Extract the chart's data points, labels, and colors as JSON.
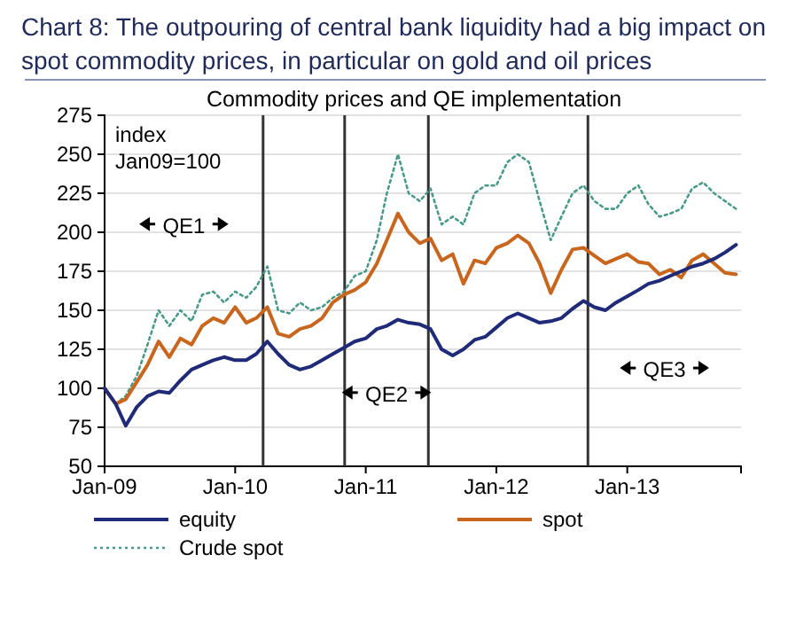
{
  "chart_data": {
    "type": "line",
    "title": "Chart 8: The outpouring of central bank liquidity had a big impact on\nspot commodity prices, in particular on gold and oil prices",
    "subtitle": "Commodity prices and QE implementation",
    "x": [
      "2009-01",
      "2009-02",
      "2009-03",
      "2009-04",
      "2009-05",
      "2009-06",
      "2009-07",
      "2009-08",
      "2009-09",
      "2009-10",
      "2009-11",
      "2009-12",
      "2010-01",
      "2010-02",
      "2010-03",
      "2010-04",
      "2010-05",
      "2010-06",
      "2010-07",
      "2010-08",
      "2010-09",
      "2010-10",
      "2010-11",
      "2010-12",
      "2011-01",
      "2011-02",
      "2011-03",
      "2011-04",
      "2011-05",
      "2011-06",
      "2011-07",
      "2011-08",
      "2011-09",
      "2011-10",
      "2011-11",
      "2011-12",
      "2012-01",
      "2012-02",
      "2012-03",
      "2012-04",
      "2012-05",
      "2012-06",
      "2012-07",
      "2012-08",
      "2012-09",
      "2012-10",
      "2012-11",
      "2012-12",
      "2013-01",
      "2013-02",
      "2013-03",
      "2013-04",
      "2013-05",
      "2013-06",
      "2013-07",
      "2013-08",
      "2013-09",
      "2013-10",
      "2013-11"
    ],
    "series": [
      {
        "name": "equity",
        "color": "#1f2a78",
        "line_style": "solid",
        "values": [
          100,
          90,
          76,
          88,
          95,
          98,
          97,
          105,
          112,
          115,
          118,
          120,
          118,
          118,
          122,
          130,
          122,
          115,
          112,
          114,
          118,
          122,
          126,
          130,
          132,
          138,
          140,
          144,
          142,
          141,
          138,
          125,
          121,
          125,
          131,
          133,
          139,
          145,
          148,
          145,
          142,
          143,
          145,
          151,
          156,
          152,
          150,
          155,
          159,
          163,
          167,
          169,
          172,
          175,
          178,
          180,
          183,
          187,
          192
        ]
      },
      {
        "name": "spot",
        "color": "#c8661e",
        "line_style": "solid",
        "values": [
          100,
          90,
          93,
          104,
          115,
          130,
          120,
          132,
          128,
          140,
          145,
          142,
          152,
          142,
          145,
          152,
          135,
          133,
          138,
          140,
          145,
          155,
          160,
          163,
          168,
          180,
          195,
          212,
          200,
          193,
          196,
          182,
          186,
          167,
          182,
          180,
          190,
          193,
          198,
          193,
          180,
          161,
          176,
          189,
          190,
          185,
          180,
          183,
          186,
          181,
          180,
          173,
          176,
          171,
          182,
          186,
          180,
          174,
          173
        ]
      },
      {
        "name": "Crude spot",
        "color": "#4a9a8a",
        "line_style": "dotted",
        "values": [
          100,
          90,
          95,
          108,
          128,
          150,
          140,
          150,
          143,
          160,
          162,
          155,
          162,
          158,
          165,
          178,
          150,
          148,
          155,
          150,
          152,
          158,
          162,
          172,
          175,
          195,
          225,
          250,
          225,
          220,
          228,
          205,
          210,
          205,
          225,
          230,
          230,
          245,
          250,
          245,
          220,
          195,
          210,
          225,
          230,
          220,
          215,
          215,
          225,
          230,
          218,
          210,
          212,
          215,
          228,
          232,
          225,
          220,
          215
        ]
      }
    ],
    "xlim": [
      "2009-01-01",
      "2013-11-15"
    ],
    "xticks": [
      {
        "value": "2009-01",
        "label": "Jan-09"
      },
      {
        "value": "2010-01",
        "label": "Jan-10"
      },
      {
        "value": "2011-01",
        "label": "Jan-11"
      },
      {
        "value": "2012-01",
        "label": "Jan-12"
      },
      {
        "value": "2013-01",
        "label": "Jan-13"
      }
    ],
    "ylim": [
      50,
      275
    ],
    "yticks": [
      50,
      75,
      100,
      125,
      150,
      175,
      200,
      225,
      250,
      275
    ],
    "grid": "y",
    "legend": "bottom",
    "ref_lines": [
      {
        "axis": "x",
        "value": "2010-03-20",
        "color": "#333333"
      },
      {
        "axis": "x",
        "value": "2010-11-03",
        "color": "#333333"
      },
      {
        "axis": "x",
        "value": "2011-06-25",
        "color": "#333333"
      },
      {
        "axis": "x",
        "value": "2012-09-13",
        "color": "#333333"
      }
    ],
    "annotations": [
      "index\nJan09=100",
      "QE1",
      "QE2",
      "QE3"
    ]
  }
}
